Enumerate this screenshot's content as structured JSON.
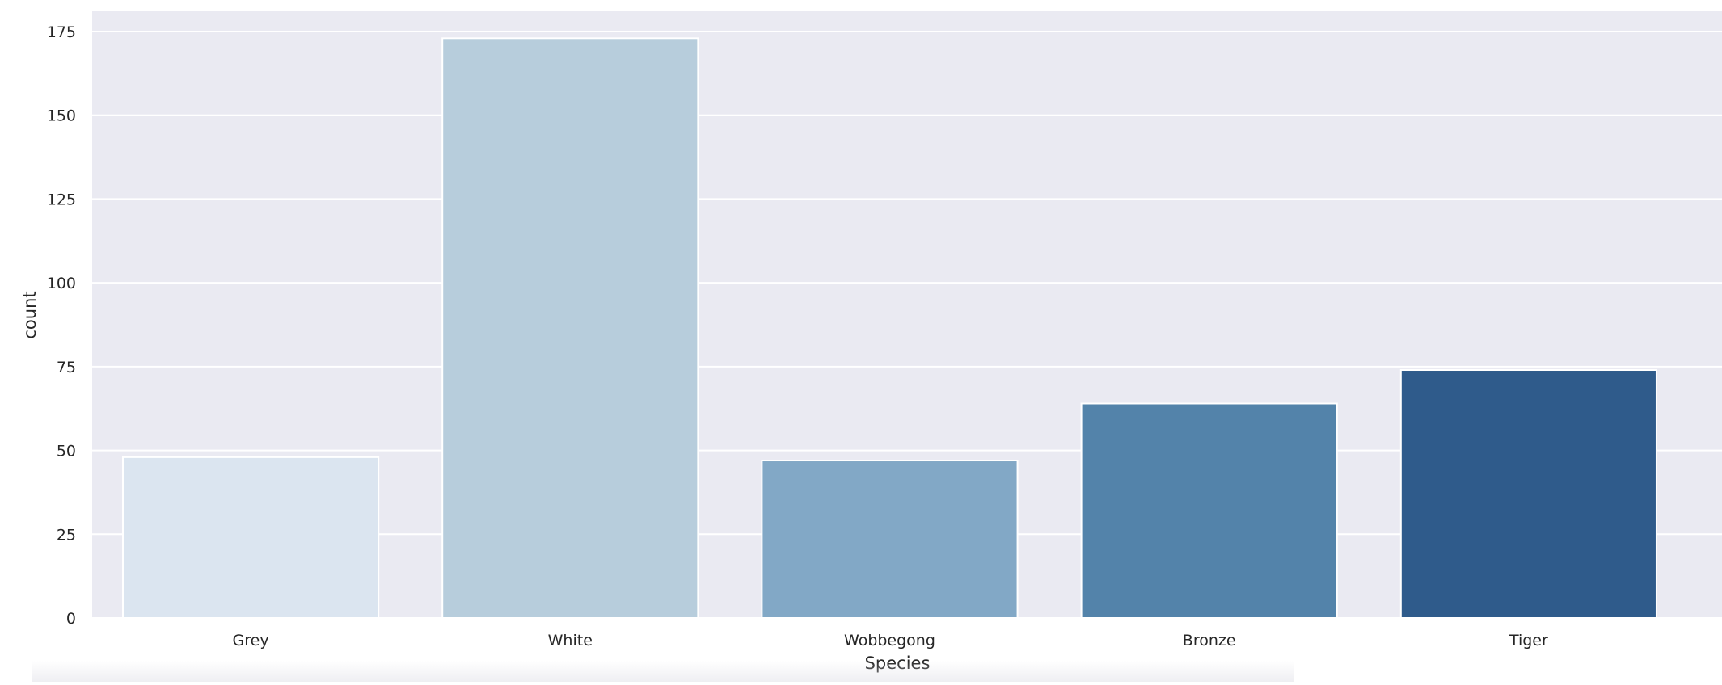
{
  "chart_data": {
    "type": "bar",
    "categories": [
      "Grey",
      "White",
      "Wobbegong",
      "Bronze",
      "Tiger"
    ],
    "values": [
      48,
      173,
      47,
      64,
      74
    ],
    "colors": [
      "#dbe5f0",
      "#b7cddc",
      "#82a8c6",
      "#5383aa",
      "#2f5b8b"
    ],
    "xlabel": "Species",
    "ylabel": "count",
    "ylim": [
      0,
      175
    ],
    "yticks": [
      0,
      25,
      50,
      75,
      100,
      125,
      150,
      175
    ],
    "grid": true,
    "background": "#eaeaf2",
    "gridColor": "#ffffff"
  }
}
